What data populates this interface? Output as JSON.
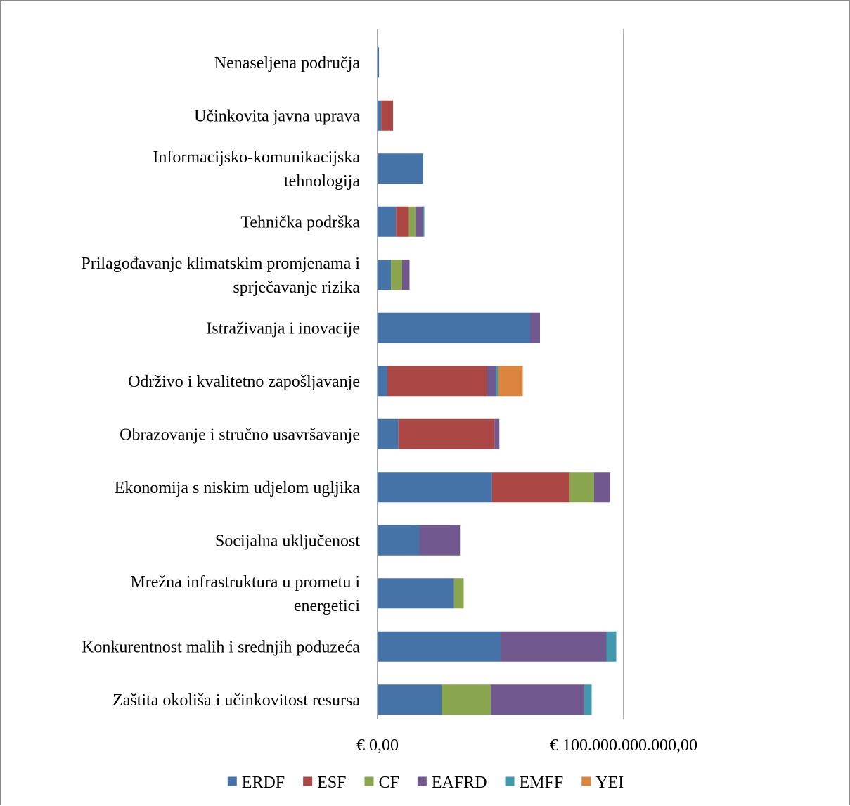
{
  "chart_data": {
    "type": "bar",
    "orientation": "horizontal",
    "stacked": true,
    "title": "",
    "xlabel": "",
    "ylabel": "",
    "xlim": [
      0,
      100000000000
    ],
    "xticks": [
      {
        "value": 0,
        "label": "€ 0,00"
      },
      {
        "value": 100000000000,
        "label": "€ 100.000.000.000,00"
      }
    ],
    "grid": "vertical major gridlines",
    "legend_position": "bottom",
    "categories": [
      [
        "Nenaseljena područja"
      ],
      [
        "Učinkovita javna uprava"
      ],
      [
        "Informacijsko-komunikacijska",
        "tehnologija"
      ],
      [
        "Tehnička podrška"
      ],
      [
        "Prilagođavanje klimatskim promjenama i",
        "sprječavanje rizika"
      ],
      [
        "Istraživanja i inovacije"
      ],
      [
        "Održivo i kvalitetno zapošljavanje"
      ],
      [
        "Obrazovanje i stručno usavršavanje"
      ],
      [
        "Ekonomija s niskim udjelom ugljika"
      ],
      [
        "Socijalna uključenost"
      ],
      [
        "Mrežna infrastruktura u prometu i",
        "energetici"
      ],
      [
        "Konkurentnost malih i srednjih poduzeća"
      ],
      [
        "Zaštita okoliša i učinkovitost resursa"
      ]
    ],
    "series": [
      {
        "name": "ERDF",
        "color": "#4572A7",
        "values": [
          600000000,
          1500000000,
          18500000000,
          7500000000,
          5500000000,
          62000000000,
          4000000000,
          8500000000,
          46500000000,
          17000000000,
          31000000000,
          50000000000,
          26000000000
        ]
      },
      {
        "name": "ESF",
        "color": "#AA4643",
        "values": [
          0,
          4800000000,
          0,
          5200000000,
          0,
          0,
          40500000000,
          39000000000,
          31500000000,
          0,
          0,
          0,
          0
        ]
      },
      {
        "name": "CF",
        "color": "#89A54E",
        "values": [
          0,
          0,
          0,
          2800000000,
          4500000000,
          0,
          0,
          0,
          10000000000,
          0,
          4000000000,
          0,
          20000000000
        ]
      },
      {
        "name": "EAFRD",
        "color": "#71588F",
        "values": [
          0,
          0,
          0,
          3000000000,
          3000000000,
          4000000000,
          3500000000,
          2000000000,
          6500000000,
          16500000000,
          0,
          43000000000,
          38000000000
        ]
      },
      {
        "name": "EMFF",
        "color": "#4198AF",
        "values": [
          0,
          0,
          0,
          500000000,
          0,
          0,
          1000000000,
          0,
          0,
          0,
          0,
          4000000000,
          3000000000
        ]
      },
      {
        "name": "YEI",
        "color": "#DB843D",
        "values": [
          0,
          0,
          0,
          0,
          0,
          0,
          10000000000,
          0,
          0,
          0,
          0,
          0,
          0
        ]
      }
    ]
  }
}
